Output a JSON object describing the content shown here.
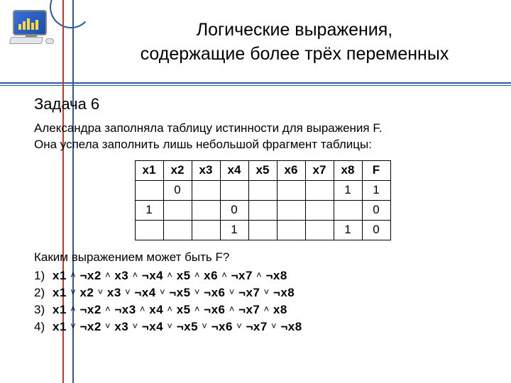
{
  "title_line1": "Логические выражения,",
  "title_line2": "содержащие более трёх переменных",
  "task_label": "Задача 6",
  "paragraph_line1": "Александра заполняла таблицу истинности для выражения F.",
  "paragraph_line2": "Она успела заполнить лишь небольшой фрагмент таблицы:",
  "table": {
    "headers": [
      "x1",
      "x2",
      "x3",
      "x4",
      "x5",
      "x6",
      "x7",
      "x8",
      "F"
    ],
    "rows": [
      [
        "",
        "0",
        "",
        "",
        "",
        "",
        "",
        "1",
        "1"
      ],
      [
        "1",
        "",
        "",
        "0",
        "",
        "",
        "",
        "",
        "0"
      ],
      [
        "",
        "",
        "",
        "1",
        "",
        "",
        "",
        "1",
        "0"
      ]
    ]
  },
  "question": "Каким выражением может быть F?",
  "options": [
    {
      "n": "1)",
      "text": "x1 ˄ ¬x2 ˄ x3 ˄  ¬x4 ˄ x5 ˄ x6 ˄ ¬x7 ˄ ¬x8"
    },
    {
      "n": "2)",
      "text": "x1 ˅ x2 ˅ x3 ˅  ¬x4 ˅ ¬x5 ˅ ¬x6 ˅ ¬x7 ˅ ¬x8"
    },
    {
      "n": "3)",
      "text": "x1 ˄ ¬x2 ˄ ¬x3 ˄  x4 ˄ x5 ˄ ¬x6 ˄ ¬x7 ˄ x8"
    },
    {
      "n": "4)",
      "text": "x1 ˅ ¬x2 ˅ x3 ˅  ¬x4 ˅ ¬x5 ˅ ¬x6 ˅ ¬x7 ˅ ¬x8"
    }
  ],
  "colors": {
    "rule": "#2b5aa0",
    "wire_red": "#c0392b",
    "wire_blue": "#2b5aa0"
  }
}
